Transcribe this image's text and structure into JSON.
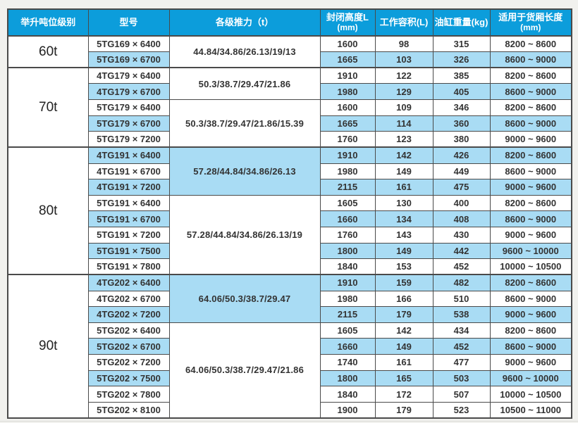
{
  "colors": {
    "header_bg": "#0c9ddb",
    "header_text": "#ffffff",
    "row_highlight": "#a9dcf4",
    "body_text": "#333333",
    "grid_border": "#4a4a4a",
    "page_bg": "#f1f1ee"
  },
  "table": {
    "headers": [
      {
        "label": "举升吨位级别"
      },
      {
        "label": "型号"
      },
      {
        "label": "各级推力（t）"
      },
      {
        "label": "封闭高度L",
        "sub": "(mm)"
      },
      {
        "label": "工作容积(L)"
      },
      {
        "label": "油缸重量(kg)"
      },
      {
        "label": "适用于货厢长度",
        "sub": "(mm)"
      }
    ],
    "groups": [
      {
        "tonnage": "60t",
        "subgroups": [
          {
            "thrust": "44.84/34.86/26.13/19/13",
            "thrust_highlight": false,
            "rows": [
              {
                "model": "5TG169 × 6400",
                "closed_height": "1600",
                "working_volume": "98",
                "weight": "315",
                "box_length": "8200 ~ 8600",
                "highlight": false
              },
              {
                "model": "5TG169 × 6700",
                "closed_height": "1665",
                "working_volume": "103",
                "weight": "326",
                "box_length": "8600 ~ 9000",
                "highlight": true
              }
            ]
          }
        ]
      },
      {
        "tonnage": "70t",
        "subgroups": [
          {
            "thrust": "50.3/38.7/29.47/21.86",
            "thrust_highlight": false,
            "rows": [
              {
                "model": "4TG179 × 6400",
                "closed_height": "1910",
                "working_volume": "122",
                "weight": "385",
                "box_length": "8200 ~ 8600",
                "highlight": false
              },
              {
                "model": "4TG179 × 6700",
                "closed_height": "1980",
                "working_volume": "129",
                "weight": "405",
                "box_length": "8600 ~ 9000",
                "highlight": true
              }
            ]
          },
          {
            "thrust": "50.3/38.7/29.47/21.86/15.39",
            "thrust_highlight": false,
            "rows": [
              {
                "model": "5TG179 × 6400",
                "closed_height": "1600",
                "working_volume": "109",
                "weight": "346",
                "box_length": "8200 ~ 8600",
                "highlight": false
              },
              {
                "model": "5TG179 × 6700",
                "closed_height": "1665",
                "working_volume": "114",
                "weight": "360",
                "box_length": "8600 ~ 9000",
                "highlight": true
              },
              {
                "model": "5TG179 × 7200",
                "closed_height": "1760",
                "working_volume": "123",
                "weight": "380",
                "box_length": "9000 ~ 9600",
                "highlight": false
              }
            ]
          }
        ]
      },
      {
        "tonnage": "80t",
        "subgroups": [
          {
            "thrust": "57.28/44.84/34.86/26.13",
            "thrust_highlight": true,
            "rows": [
              {
                "model": "4TG191 × 6400",
                "closed_height": "1910",
                "working_volume": "142",
                "weight": "426",
                "box_length": "8200 ~ 8600",
                "highlight": true
              },
              {
                "model": "4TG191 × 6700",
                "closed_height": "1980",
                "working_volume": "149",
                "weight": "449",
                "box_length": "8600 ~ 9000",
                "highlight": false
              },
              {
                "model": "4TG191 × 7200",
                "closed_height": "2115",
                "working_volume": "161",
                "weight": "475",
                "box_length": "9000 ~ 9600",
                "highlight": true
              }
            ]
          },
          {
            "thrust": "57.28/44.84/34.86/26.13/19",
            "thrust_highlight": false,
            "rows": [
              {
                "model": "5TG191 × 6400",
                "closed_height": "1605",
                "working_volume": "130",
                "weight": "400",
                "box_length": "8200 ~ 8600",
                "highlight": false
              },
              {
                "model": "5TG191 × 6700",
                "closed_height": "1660",
                "working_volume": "134",
                "weight": "408",
                "box_length": "8600 ~ 9000",
                "highlight": true
              },
              {
                "model": "5TG191 × 7200",
                "closed_height": "1760",
                "working_volume": "143",
                "weight": "430",
                "box_length": "9000 ~ 9600",
                "highlight": false
              },
              {
                "model": "5TG191 × 7500",
                "closed_height": "1800",
                "working_volume": "149",
                "weight": "442",
                "box_length": "9600 ~ 10000",
                "highlight": true
              },
              {
                "model": "5TG191 × 7800",
                "closed_height": "1840",
                "working_volume": "153",
                "weight": "452",
                "box_length": "10000 ~ 10500",
                "highlight": false
              }
            ]
          }
        ]
      },
      {
        "tonnage": "90t",
        "subgroups": [
          {
            "thrust": "64.06/50.3/38.7/29.47",
            "thrust_highlight": true,
            "rows": [
              {
                "model": "4TG202 × 6400",
                "closed_height": "1910",
                "working_volume": "159",
                "weight": "482",
                "box_length": "8200 ~ 8600",
                "highlight": true
              },
              {
                "model": "4TG202 × 6700",
                "closed_height": "1980",
                "working_volume": "166",
                "weight": "510",
                "box_length": "8600 ~ 9000",
                "highlight": false
              },
              {
                "model": "4TG202 × 7200",
                "closed_height": "2115",
                "working_volume": "179",
                "weight": "538",
                "box_length": "9000 ~ 9600",
                "highlight": true
              }
            ]
          },
          {
            "thrust": "64.06/50.3/38.7/29.47/21.86",
            "thrust_highlight": false,
            "rows": [
              {
                "model": "5TG202 × 6400",
                "closed_height": "1605",
                "working_volume": "142",
                "weight": "434",
                "box_length": "8200 ~ 8600",
                "highlight": false
              },
              {
                "model": "5TG202 × 6700",
                "closed_height": "1660",
                "working_volume": "149",
                "weight": "452",
                "box_length": "8600 ~ 9000",
                "highlight": true
              },
              {
                "model": "5TG202 × 7200",
                "closed_height": "1740",
                "working_volume": "161",
                "weight": "477",
                "box_length": "9000 ~ 9600",
                "highlight": false
              },
              {
                "model": "5TG202 × 7500",
                "closed_height": "1800",
                "working_volume": "165",
                "weight": "503",
                "box_length": "9600 ~ 10000",
                "highlight": true
              },
              {
                "model": "5TG202 × 7800",
                "closed_height": "1840",
                "working_volume": "172",
                "weight": "507",
                "box_length": "10000 ~ 10500",
                "highlight": false
              },
              {
                "model": "5TG202 × 8100",
                "closed_height": "1900",
                "working_volume": "179",
                "weight": "523",
                "box_length": "10500 ~ 11000",
                "highlight": false
              }
            ]
          }
        ]
      }
    ]
  }
}
